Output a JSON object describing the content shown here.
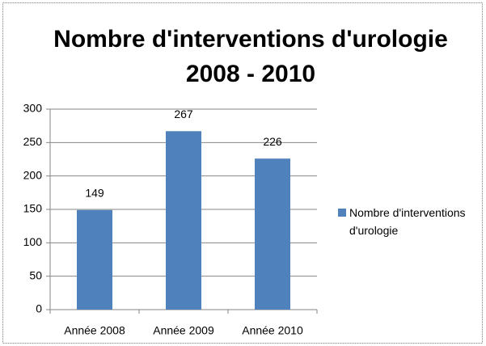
{
  "chart_data": {
    "type": "bar",
    "title": [
      "Nombre d'interventions d'urologie",
      "2008 - 2010"
    ],
    "categories": [
      "Année 2008",
      "Année 2009",
      "Année 2010"
    ],
    "series": [
      {
        "name": "Nombre d'interventions d'urologie",
        "color": "#4f81bd",
        "values": [
          149,
          267,
          226
        ]
      }
    ],
    "ylim": [
      0,
      300
    ],
    "yticks": [
      0,
      50,
      100,
      150,
      200,
      250,
      300
    ],
    "grid": true,
    "legend": "right"
  }
}
